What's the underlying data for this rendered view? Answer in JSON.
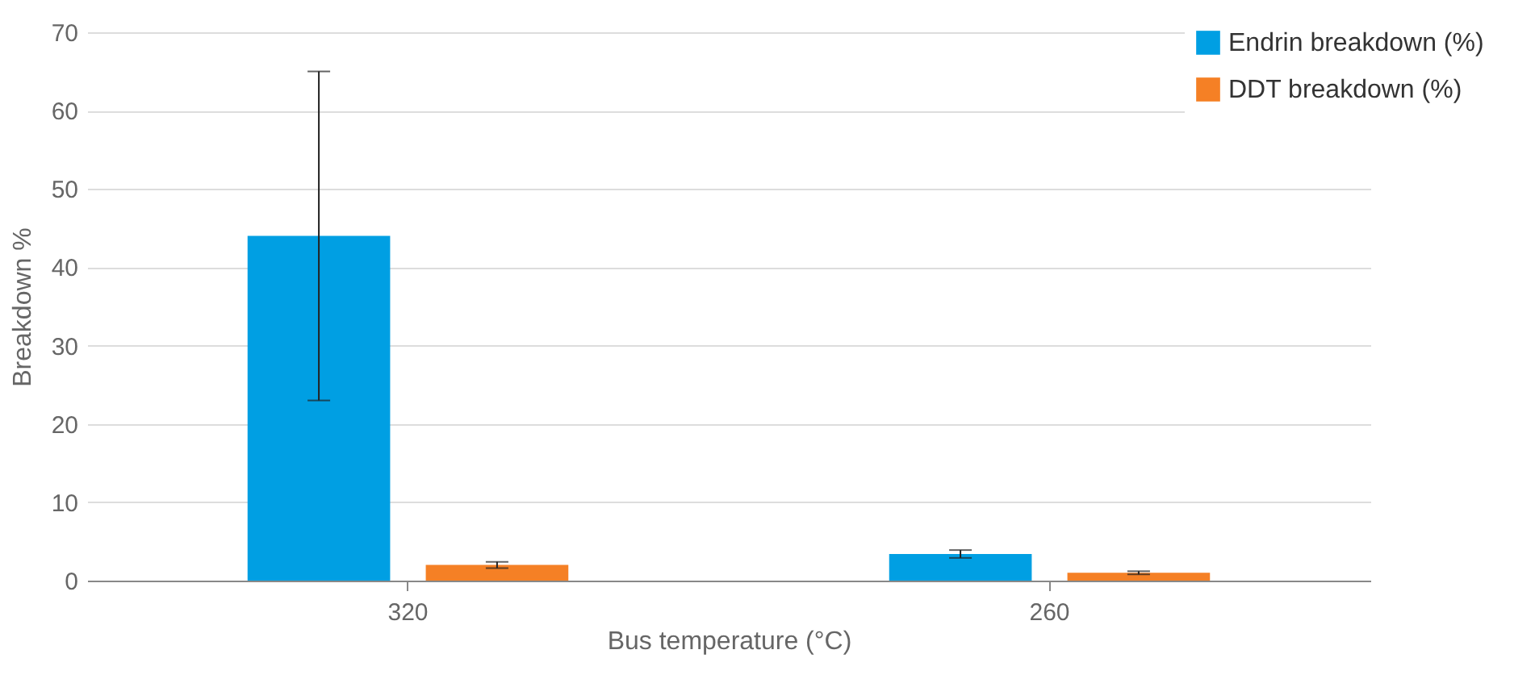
{
  "chart_data": {
    "type": "bar",
    "xlabel": "Bus temperature (°C)",
    "ylabel": "Breakdown %",
    "categories": [
      "320",
      "260"
    ],
    "series": [
      {
        "name": "Endrin breakdown (%)",
        "color": "#009fe3",
        "values": [
          44,
          3.4
        ],
        "errors": [
          21,
          0.5
        ]
      },
      {
        "name": "DDT breakdown (%)",
        "color": "#f58025",
        "values": [
          2,
          1
        ],
        "errors": [
          0.4,
          0.2
        ]
      }
    ],
    "ylim": [
      0,
      70
    ],
    "yticks": [
      0,
      10,
      20,
      30,
      40,
      50,
      60,
      70
    ],
    "grid": "y",
    "legend": "top right"
  }
}
